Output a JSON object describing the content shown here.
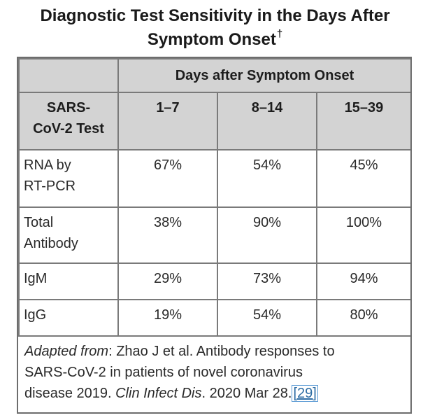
{
  "title": {
    "line1": "Diagnostic Test Sensitivity in the Days After",
    "line2": "Symptom Onset",
    "dagger": "†"
  },
  "table": {
    "group_header": "Days after Symptom Onset",
    "row_header": {
      "line1": "SARS-",
      "line2": "CoV-2 Test"
    },
    "columns": [
      "1–7",
      "8–14",
      "15–39"
    ],
    "rows": [
      {
        "label_line1": "RNA by",
        "label_line2": "RT-PCR",
        "values": [
          "67%",
          "54%",
          "45%"
        ]
      },
      {
        "label_line1": "Total",
        "label_line2": "Antibody",
        "values": [
          "38%",
          "90%",
          "100%"
        ]
      },
      {
        "label_line1": "IgM",
        "label_line2": "",
        "values": [
          "29%",
          "73%",
          "94%"
        ]
      },
      {
        "label_line1": "IgG",
        "label_line2": "",
        "values": [
          "19%",
          "54%",
          "80%"
        ]
      }
    ]
  },
  "footnote": {
    "adapted_label": "Adapted from",
    "text1": ": Zhao J et al. Antibody responses to",
    "text2": "SARS-CoV-2 in patients of novel coronavirus",
    "text3": "disease 2019. ",
    "journal": "Clin Infect Dis",
    "date": ". 2020 Mar 28.",
    "reference": "[29]"
  }
}
